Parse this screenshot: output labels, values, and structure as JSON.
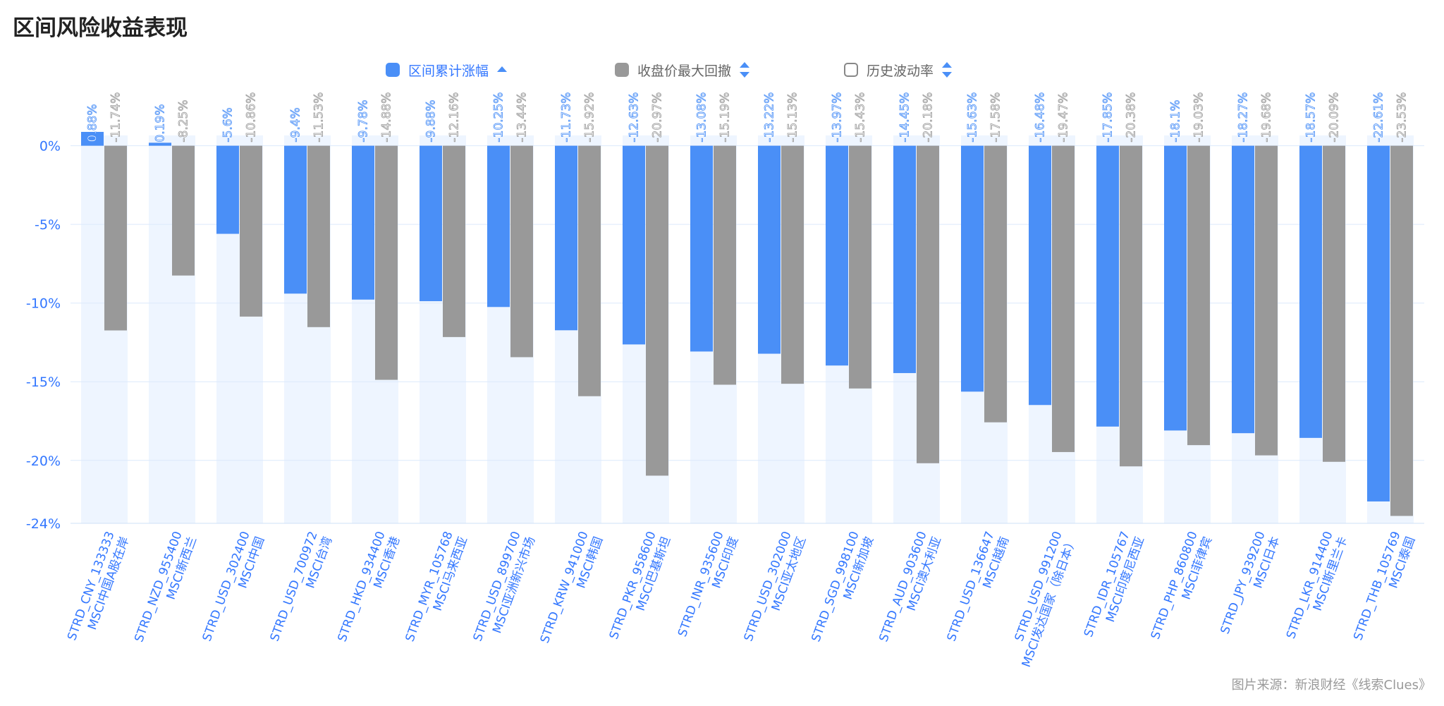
{
  "title": "区间风险收益表现",
  "legend": [
    {
      "label": "区间累计涨幅",
      "color": "#4A8FF7",
      "sort": "asc"
    },
    {
      "label": "收盘价最大回撤",
      "color": "#999999",
      "sort": "both"
    },
    {
      "label": "历史波动率",
      "color": "#ffffff",
      "sort": "both"
    }
  ],
  "footer": "图片来源：新浪财经《线索Clues》",
  "colors": {
    "accent": "#4A8FF7",
    "bar_gray": "#999999",
    "band": "#EEF5FF",
    "axis_text": "#3377FF"
  },
  "chart_data": {
    "type": "bar",
    "title": "区间风险收益表现",
    "ylim": [
      -24,
      2
    ],
    "yticks": [
      0,
      -5,
      -10,
      -15,
      -20,
      -24
    ],
    "ytick_labels": [
      "0%",
      "-5%",
      "-10%",
      "-15%",
      "-20%",
      "-24%"
    ],
    "categories": [
      {
        "code": "STRD_CNY_133333",
        "name": "MSCI中国A股在岸"
      },
      {
        "code": "STRD_NZD_955400",
        "name": "MSCI新西兰"
      },
      {
        "code": "STRD_USD_302400",
        "name": "MSCI中国"
      },
      {
        "code": "STRD_USD_700972",
        "name": "MSCI台湾"
      },
      {
        "code": "STRD_HKD_934400",
        "name": "MSCI香港"
      },
      {
        "code": "STRD_MYR_105768",
        "name": "MSCI马来西亚"
      },
      {
        "code": "STRD_USD_899700",
        "name": "MSCI亚洲新兴市场"
      },
      {
        "code": "STRD_KRW_941000",
        "name": "MSCI韩国"
      },
      {
        "code": "STRD_PKR_958600",
        "name": "MSCI巴基斯坦"
      },
      {
        "code": "STRD_INR_935600",
        "name": "MSCI印度"
      },
      {
        "code": "STRD_USD_302000",
        "name": "MSCI亚太地区"
      },
      {
        "code": "STRD_SGD_998100",
        "name": "MSCI新加坡"
      },
      {
        "code": "STRD_AUD_903600",
        "name": "MSCI澳大利亚"
      },
      {
        "code": "STRD_USD_136647",
        "name": "MSCI越南"
      },
      {
        "code": "STRD_USD_991200",
        "name": "MSCI发达国家（除日本）"
      },
      {
        "code": "STRD_IDR_105767",
        "name": "MSCI印度尼西亚"
      },
      {
        "code": "STRD_PHP_860800",
        "name": "MSCI菲律宾"
      },
      {
        "code": "STRD_JPY_939200",
        "name": "MSCI日本"
      },
      {
        "code": "STRD_LKR_914400",
        "name": "MSCI斯里兰卡"
      },
      {
        "code": "STRD_THB_105769",
        "name": "MSCI泰国"
      }
    ],
    "series": [
      {
        "name": "区间累计涨幅",
        "color": "#4A8FF7",
        "values": [
          0.88,
          0.19,
          -5.6,
          -9.4,
          -9.78,
          -9.88,
          -10.25,
          -11.73,
          -12.63,
          -13.08,
          -13.22,
          -13.97,
          -14.45,
          -15.63,
          -16.48,
          -17.85,
          -18.1,
          -18.27,
          -18.57,
          -22.61
        ],
        "labels": [
          "0.88%",
          "0.19%",
          "-5.6%",
          "-9.4%",
          "-9.78%",
          "-9.88%",
          "-10.25%",
          "-11.73%",
          "-12.63%",
          "-13.08%",
          "-13.22%",
          "-13.97%",
          "-14.45%",
          "-15.63%",
          "-16.48%",
          "-17.85%",
          "-18.1%",
          "-18.27%",
          "-18.57%",
          "-22.61%"
        ]
      },
      {
        "name": "收盘价最大回撤",
        "color": "#999999",
        "values": [
          -11.74,
          -8.25,
          -10.86,
          -11.53,
          -14.88,
          -12.16,
          -13.44,
          -15.92,
          -20.97,
          -15.19,
          -15.13,
          -15.43,
          -20.18,
          -17.58,
          -19.47,
          -20.38,
          -19.03,
          -19.68,
          -20.09,
          -23.53
        ],
        "labels": [
          "-11.74%",
          "-8.25%",
          "-10.86%",
          "-11.53%",
          "-14.88%",
          "-12.16%",
          "-13.44%",
          "-15.92%",
          "-20.97%",
          "-15.19%",
          "-15.13%",
          "-15.43%",
          "-20.18%",
          "-17.58%",
          "-19.47%",
          "-20.38%",
          "-19.03%",
          "-19.68%",
          "-20.09%",
          "-23.53%"
        ]
      }
    ]
  }
}
